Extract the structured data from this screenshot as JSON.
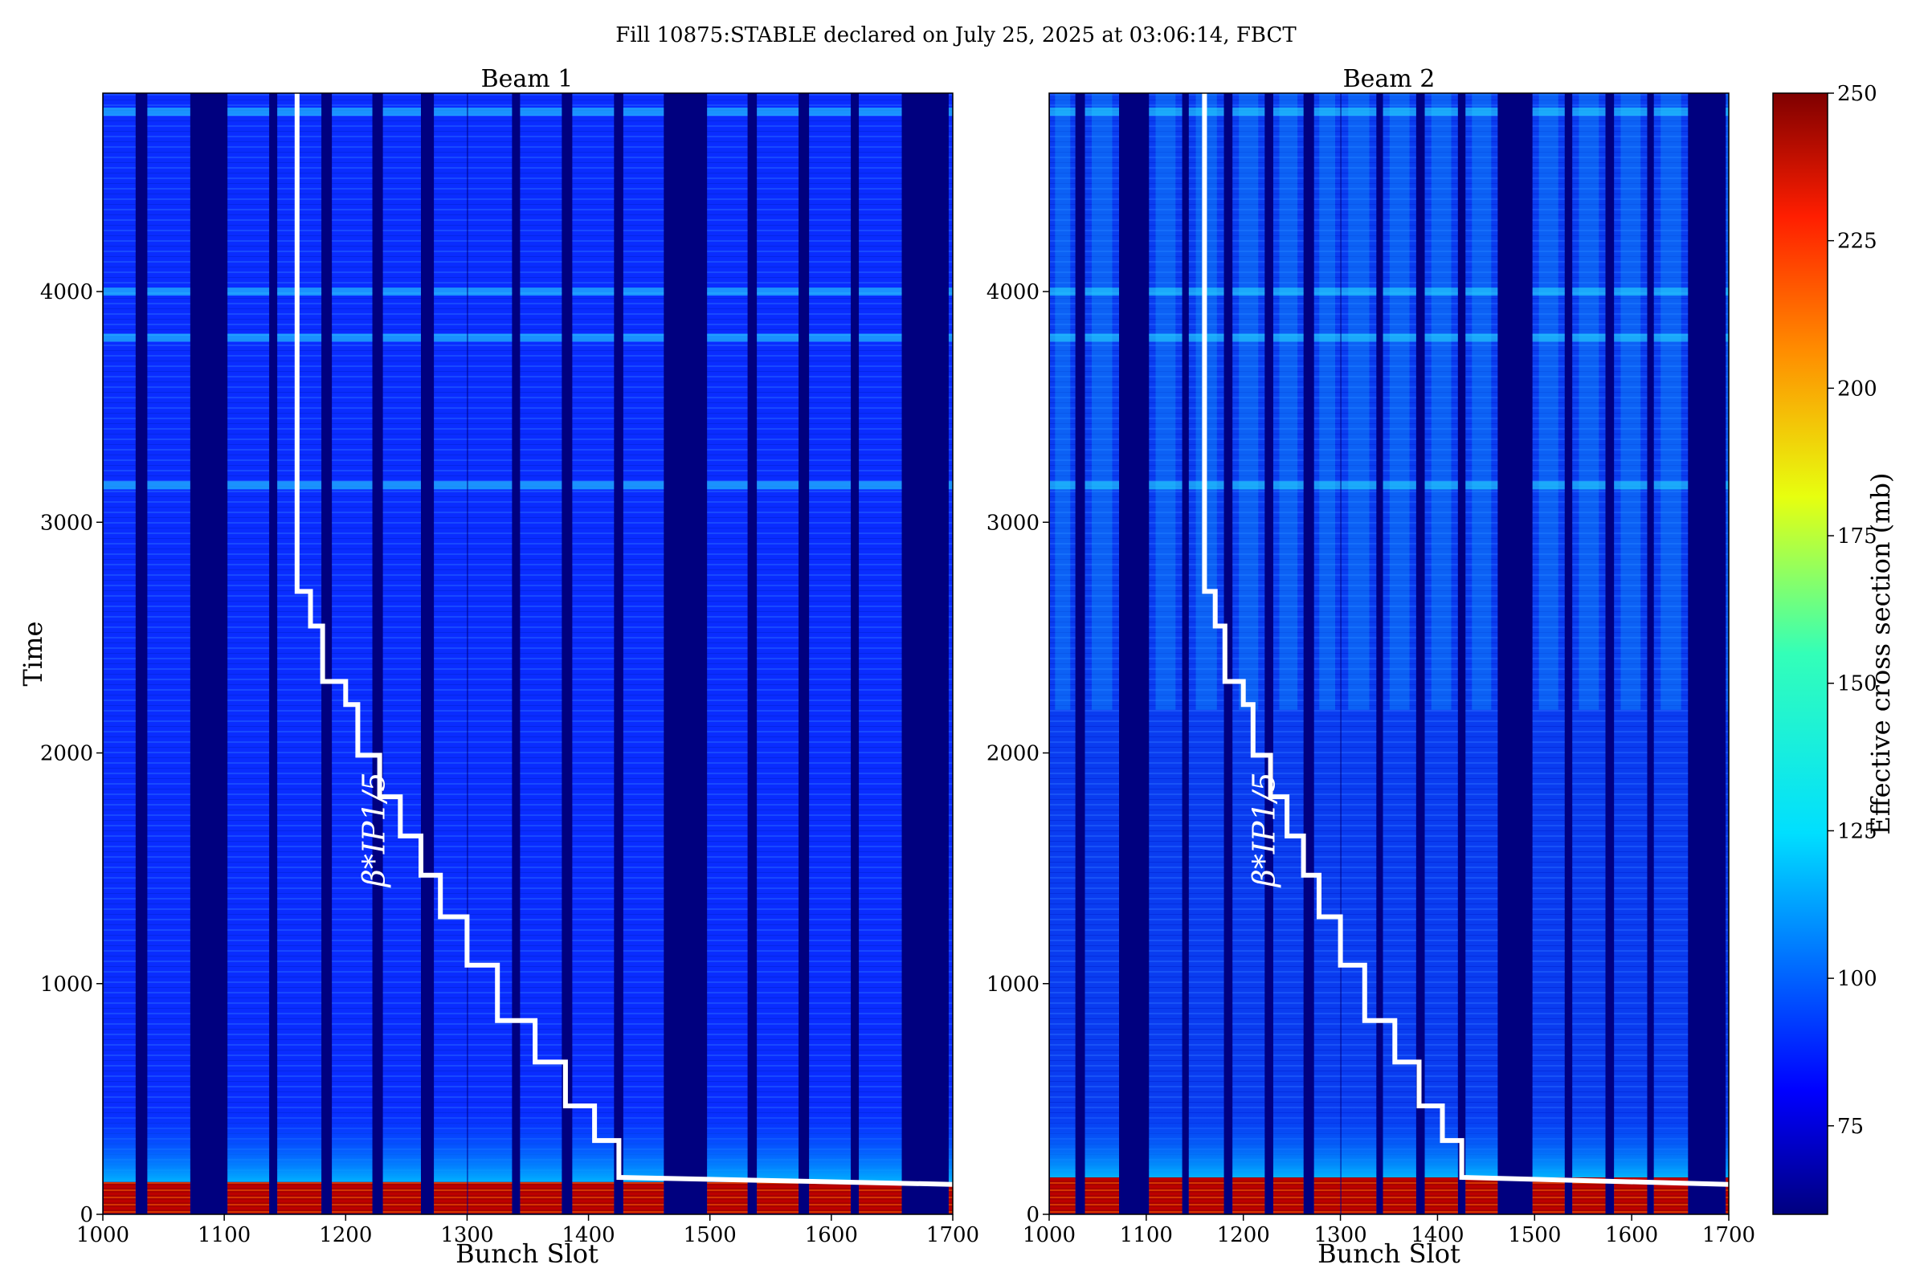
{
  "title": "Fill 10875:STABLE declared on July 25, 2025 at 03:06:14, FBCT",
  "chart_data": {
    "type": "heatmap",
    "colorbar": {
      "label": "Effective cross section (mb)",
      "range": [
        60,
        250
      ],
      "ticks": [
        75,
        100,
        125,
        150,
        175,
        200,
        225,
        250
      ],
      "colormap": "jet"
    },
    "panels": [
      {
        "title": "Beam 1",
        "xlabel": "Bunch Slot",
        "ylabel": "Time",
        "xlim": [
          1000,
          1700
        ],
        "ylim": [
          0,
          4860
        ],
        "xticks": [
          1000,
          1100,
          1200,
          1300,
          1400,
          1500,
          1600,
          1700
        ],
        "yticks": [
          0,
          1000,
          2000,
          3000,
          4000
        ],
        "filled_trains": [
          [
            1000,
            1027
          ],
          [
            1036,
            1072
          ],
          [
            1102,
            1137
          ],
          [
            1143,
            1180
          ],
          [
            1188,
            1222
          ],
          [
            1230,
            1262
          ],
          [
            1272,
            1300
          ],
          [
            1300,
            1337
          ],
          [
            1343,
            1378
          ],
          [
            1386,
            1421
          ],
          [
            1428,
            1462
          ],
          [
            1497,
            1531
          ],
          [
            1538,
            1573
          ],
          [
            1581,
            1616
          ],
          [
            1622,
            1658
          ],
          [
            1696,
            1700
          ]
        ],
        "high_band_time": [
          0,
          140
        ],
        "bright_time_bands": [
          4780,
          4000,
          3800,
          3160
        ],
        "beta_annotation": "β*IP1/5",
        "beta_steps": [
          [
            1160,
            4860
          ],
          [
            1160,
            2700
          ],
          [
            1171,
            2700
          ],
          [
            1171,
            2550
          ],
          [
            1181,
            2550
          ],
          [
            1181,
            2310
          ],
          [
            1200,
            2310
          ],
          [
            1200,
            2210
          ],
          [
            1210,
            2210
          ],
          [
            1210,
            1990
          ],
          [
            1228,
            1990
          ],
          [
            1228,
            1810
          ],
          [
            1245,
            1810
          ],
          [
            1245,
            1640
          ],
          [
            1262,
            1640
          ],
          [
            1262,
            1470
          ],
          [
            1278,
            1470
          ],
          [
            1278,
            1290
          ],
          [
            1300,
            1290
          ],
          [
            1300,
            1080
          ],
          [
            1325,
            1080
          ],
          [
            1325,
            840
          ],
          [
            1356,
            840
          ],
          [
            1356,
            660
          ],
          [
            1381,
            660
          ],
          [
            1381,
            470
          ],
          [
            1405,
            470
          ],
          [
            1405,
            320
          ],
          [
            1425,
            320
          ],
          [
            1425,
            160
          ],
          [
            1700,
            130
          ]
        ]
      },
      {
        "title": "Beam 2",
        "xlabel": "Bunch Slot",
        "ylabel": "",
        "xlim": [
          1000,
          1700
        ],
        "ylim": [
          0,
          4860
        ],
        "xticks": [
          1000,
          1100,
          1200,
          1300,
          1400,
          1500,
          1600,
          1700
        ],
        "yticks": [
          0,
          1000,
          2000,
          3000,
          4000
        ],
        "filled_trains": [
          [
            1000,
            1027
          ],
          [
            1036,
            1072
          ],
          [
            1102,
            1137
          ],
          [
            1143,
            1180
          ],
          [
            1188,
            1222
          ],
          [
            1230,
            1262
          ],
          [
            1272,
            1300
          ],
          [
            1300,
            1337
          ],
          [
            1343,
            1378
          ],
          [
            1386,
            1421
          ],
          [
            1428,
            1462
          ],
          [
            1497,
            1531
          ],
          [
            1538,
            1573
          ],
          [
            1581,
            1616
          ],
          [
            1622,
            1658
          ],
          [
            1696,
            1700
          ]
        ],
        "high_band_time": [
          0,
          160
        ],
        "bright_time_bands": [
          4780,
          4000,
          3800,
          3160
        ],
        "beta_annotation": "β*IP1/5",
        "beta_steps": [
          [
            1160,
            4860
          ],
          [
            1160,
            2700
          ],
          [
            1171,
            2700
          ],
          [
            1171,
            2550
          ],
          [
            1181,
            2550
          ],
          [
            1181,
            2310
          ],
          [
            1200,
            2310
          ],
          [
            1200,
            2210
          ],
          [
            1210,
            2210
          ],
          [
            1210,
            1990
          ],
          [
            1228,
            1990
          ],
          [
            1228,
            1810
          ],
          [
            1245,
            1810
          ],
          [
            1245,
            1640
          ],
          [
            1262,
            1640
          ],
          [
            1262,
            1470
          ],
          [
            1278,
            1470
          ],
          [
            1278,
            1290
          ],
          [
            1300,
            1290
          ],
          [
            1300,
            1080
          ],
          [
            1325,
            1080
          ],
          [
            1325,
            840
          ],
          [
            1356,
            840
          ],
          [
            1356,
            660
          ],
          [
            1381,
            660
          ],
          [
            1381,
            470
          ],
          [
            1405,
            470
          ],
          [
            1405,
            320
          ],
          [
            1425,
            320
          ],
          [
            1425,
            160
          ],
          [
            1700,
            130
          ]
        ]
      }
    ]
  }
}
